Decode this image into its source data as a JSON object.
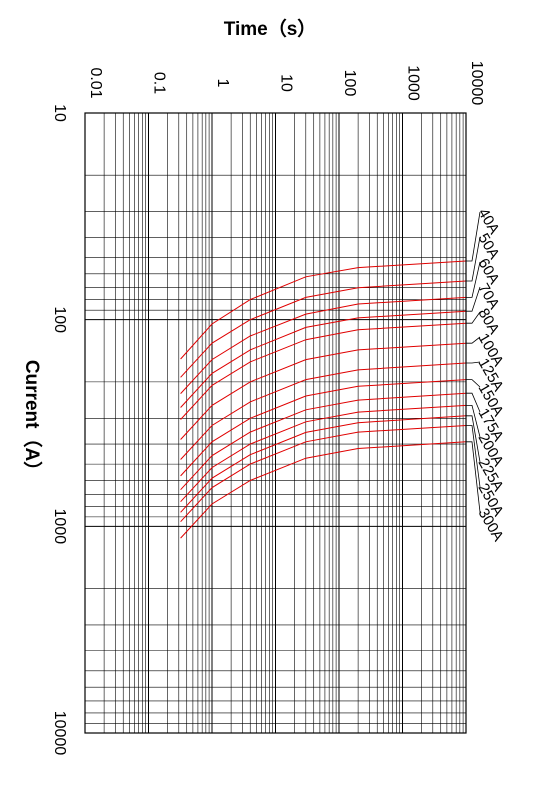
{
  "chart_data": {
    "type": "line",
    "xlabel": "Current（A）",
    "ylabel": "Time（s）",
    "x_scale": "log",
    "y_scale": "log",
    "xlim": [
      10,
      10000
    ],
    "ylim": [
      0.01,
      10000
    ],
    "x_ticks": [
      "10",
      "100",
      "1000",
      "10000"
    ],
    "y_ticks": [
      "0.01",
      "0.1",
      "1",
      "10",
      "100",
      "1000",
      "10000"
    ],
    "grid": true,
    "orientation": "rotated 90° clockwise (current runs top to bottom, time runs left to right)",
    "curve_color": "#e00000",
    "series": [
      {
        "name": "40A",
        "points": [
          [
            52,
            10000
          ],
          [
            56,
            200
          ],
          [
            62,
            30
          ],
          [
            80,
            4
          ],
          [
            105,
            1
          ],
          [
            155,
            0.32
          ]
        ]
      },
      {
        "name": "50A",
        "points": [
          [
            65,
            10000
          ],
          [
            70,
            200
          ],
          [
            78,
            30
          ],
          [
            100,
            4
          ],
          [
            130,
            1
          ],
          [
            190,
            0.32
          ]
        ]
      },
      {
        "name": "60A",
        "points": [
          [
            78,
            10000
          ],
          [
            84,
            200
          ],
          [
            94,
            30
          ],
          [
            120,
            4
          ],
          [
            156,
            1
          ],
          [
            228,
            0.32
          ]
        ]
      },
      {
        "name": "70A",
        "points": [
          [
            91,
            10000
          ],
          [
            98,
            200
          ],
          [
            109,
            30
          ],
          [
            140,
            4
          ],
          [
            182,
            1
          ],
          [
            266,
            0.32
          ]
        ]
      },
      {
        "name": "80A",
        "points": [
          [
            104,
            10000
          ],
          [
            112,
            200
          ],
          [
            125,
            30
          ],
          [
            160,
            4
          ],
          [
            208,
            1
          ],
          [
            304,
            0.32
          ]
        ]
      },
      {
        "name": "100A",
        "points": [
          [
            130,
            10000
          ],
          [
            140,
            200
          ],
          [
            156,
            30
          ],
          [
            200,
            4
          ],
          [
            260,
            1
          ],
          [
            380,
            0.32
          ]
        ]
      },
      {
        "name": "125A",
        "points": [
          [
            162,
            10000
          ],
          [
            175,
            200
          ],
          [
            195,
            30
          ],
          [
            250,
            4
          ],
          [
            325,
            1
          ],
          [
            475,
            0.32
          ]
        ]
      },
      {
        "name": "150A",
        "points": [
          [
            195,
            10000
          ],
          [
            210,
            200
          ],
          [
            234,
            30
          ],
          [
            300,
            4
          ],
          [
            390,
            1
          ],
          [
            570,
            0.32
          ]
        ]
      },
      {
        "name": "175A",
        "points": [
          [
            227,
            10000
          ],
          [
            245,
            200
          ],
          [
            273,
            30
          ],
          [
            350,
            4
          ],
          [
            455,
            1
          ],
          [
            665,
            0.32
          ]
        ]
      },
      {
        "name": "200A",
        "points": [
          [
            260,
            10000
          ],
          [
            280,
            200
          ],
          [
            312,
            30
          ],
          [
            400,
            4
          ],
          [
            520,
            1
          ],
          [
            760,
            0.32
          ]
        ]
      },
      {
        "name": "225A",
        "points": [
          [
            292,
            10000
          ],
          [
            315,
            200
          ],
          [
            351,
            30
          ],
          [
            450,
            4
          ],
          [
            585,
            1
          ],
          [
            855,
            0.32
          ]
        ]
      },
      {
        "name": "250A",
        "points": [
          [
            325,
            10000
          ],
          [
            350,
            200
          ],
          [
            390,
            30
          ],
          [
            500,
            4
          ],
          [
            650,
            1
          ],
          [
            950,
            0.32
          ]
        ]
      },
      {
        "name": "300A",
        "points": [
          [
            390,
            10000
          ],
          [
            420,
            200
          ],
          [
            468,
            30
          ],
          [
            600,
            4
          ],
          [
            780,
            1
          ],
          [
            1140,
            0.32
          ]
        ]
      }
    ]
  }
}
